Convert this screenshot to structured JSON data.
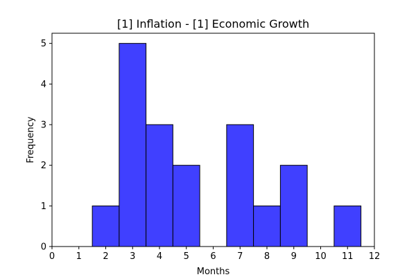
{
  "chart_data": {
    "type": "bar",
    "title": "[1] Inflation - [1] Economic Growth",
    "xlabel": "Months",
    "ylabel": "Frequency",
    "xlim": [
      0,
      12
    ],
    "ylim": [
      0,
      5.25
    ],
    "x_ticks": [
      "0",
      "1",
      "2",
      "3",
      "4",
      "5",
      "6",
      "7",
      "8",
      "9",
      "10",
      "11",
      "12"
    ],
    "y_ticks": [
      "0",
      "1",
      "2",
      "3",
      "4",
      "5"
    ],
    "bins": [
      {
        "x": 2,
        "count": 1
      },
      {
        "x": 3,
        "count": 5
      },
      {
        "x": 4,
        "count": 3
      },
      {
        "x": 5,
        "count": 2
      },
      {
        "x": 7,
        "count": 3
      },
      {
        "x": 8,
        "count": 1
      },
      {
        "x": 9,
        "count": 2
      },
      {
        "x": 11,
        "count": 1
      }
    ],
    "bar_color": "#4040ff",
    "edge_color": "#000000",
    "grid": false
  }
}
